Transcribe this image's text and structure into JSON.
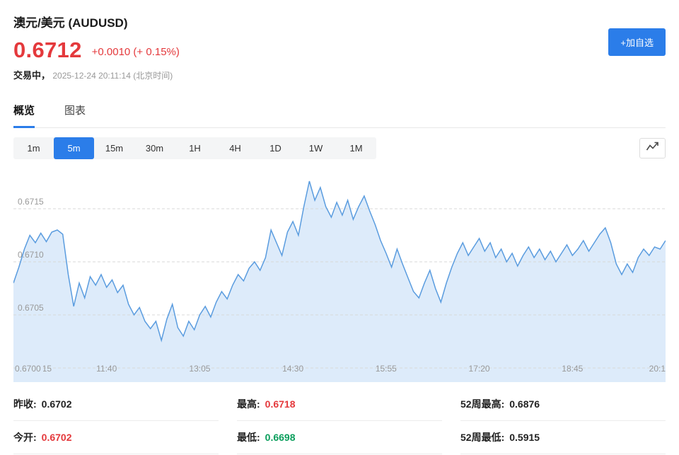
{
  "header": {
    "title": "澳元/美元 (AUDUSD)",
    "price": "0.6712",
    "change": "+0.0010 (+ 0.15%)",
    "status_label": "交易中，",
    "status_time": "2025-12-24 20:11:14 (北京时间)",
    "watchlist_button": "+加自选"
  },
  "tabs": [
    {
      "label": "概览",
      "active": true
    },
    {
      "label": "图表",
      "active": false
    }
  ],
  "timeframes": [
    {
      "label": "1m",
      "active": false
    },
    {
      "label": "5m",
      "active": true
    },
    {
      "label": "15m",
      "active": false
    },
    {
      "label": "30m",
      "active": false
    },
    {
      "label": "1H",
      "active": false
    },
    {
      "label": "4H",
      "active": false
    },
    {
      "label": "1D",
      "active": false
    },
    {
      "label": "1W",
      "active": false
    },
    {
      "label": "1M",
      "active": false
    }
  ],
  "chart_data": {
    "type": "area",
    "title": "",
    "xlabel": "",
    "ylabel": "",
    "x_labels": [
      "10:15",
      "11:40",
      "13:05",
      "14:30",
      "15:55",
      "17:20",
      "18:45",
      "20:1"
    ],
    "y_labels": [
      "0.6715",
      "0.6710",
      "0.6705",
      "0.6700"
    ],
    "ylim": [
      0.67,
      0.672
    ],
    "grid": "dashed-horizontal",
    "line_color": "#5a9cdf",
    "fill_color": "#ddebfa",
    "values": [
      0.6708,
      0.67095,
      0.67112,
      0.67125,
      0.67118,
      0.67127,
      0.67119,
      0.67128,
      0.6713,
      0.67126,
      0.67088,
      0.67058,
      0.6708,
      0.67066,
      0.67086,
      0.67078,
      0.67088,
      0.67076,
      0.67083,
      0.67071,
      0.67078,
      0.6706,
      0.6705,
      0.67057,
      0.67044,
      0.67037,
      0.67044,
      0.67026,
      0.67046,
      0.6706,
      0.67038,
      0.6703,
      0.67044,
      0.67036,
      0.6705,
      0.67058,
      0.67048,
      0.67062,
      0.67072,
      0.67065,
      0.67078,
      0.67088,
      0.67082,
      0.67094,
      0.671,
      0.67092,
      0.67104,
      0.6713,
      0.67118,
      0.67106,
      0.67128,
      0.67138,
      0.67125,
      0.67152,
      0.67176,
      0.67158,
      0.6717,
      0.67152,
      0.67142,
      0.67156,
      0.67144,
      0.67158,
      0.6714,
      0.67152,
      0.67162,
      0.67148,
      0.67135,
      0.6712,
      0.67108,
      0.67095,
      0.67112,
      0.67098,
      0.67085,
      0.67072,
      0.67066,
      0.6708,
      0.67092,
      0.67075,
      0.67062,
      0.6708,
      0.67095,
      0.67108,
      0.67118,
      0.67106,
      0.67114,
      0.67122,
      0.6711,
      0.67118,
      0.67104,
      0.67112,
      0.671,
      0.67108,
      0.67096,
      0.67106,
      0.67114,
      0.67104,
      0.67112,
      0.67102,
      0.6711,
      0.671,
      0.67108,
      0.67116,
      0.67106,
      0.67112,
      0.6712,
      0.6711,
      0.67118,
      0.67126,
      0.67132,
      0.67118,
      0.67098,
      0.67088,
      0.67098,
      0.6709,
      0.67104,
      0.67112,
      0.67106,
      0.67114,
      0.67112,
      0.6712
    ]
  },
  "stats": [
    {
      "label": "昨收:",
      "value": "0.6702"
    },
    {
      "label": "最高:",
      "value": "0.6718"
    },
    {
      "label": "52周最高:",
      "value": "0.6876"
    },
    {
      "label": "今开:",
      "value": "0.6702"
    },
    {
      "label": "最低:",
      "value": "0.6698"
    },
    {
      "label": "52周最低:",
      "value": "0.5915"
    }
  ],
  "colors": {
    "accent_blue": "#2b7de9",
    "price_red": "#e4393c",
    "value_green": "#0a9e5c",
    "chart_line": "#5a9cdf",
    "chart_fill": "#ddebfa"
  }
}
